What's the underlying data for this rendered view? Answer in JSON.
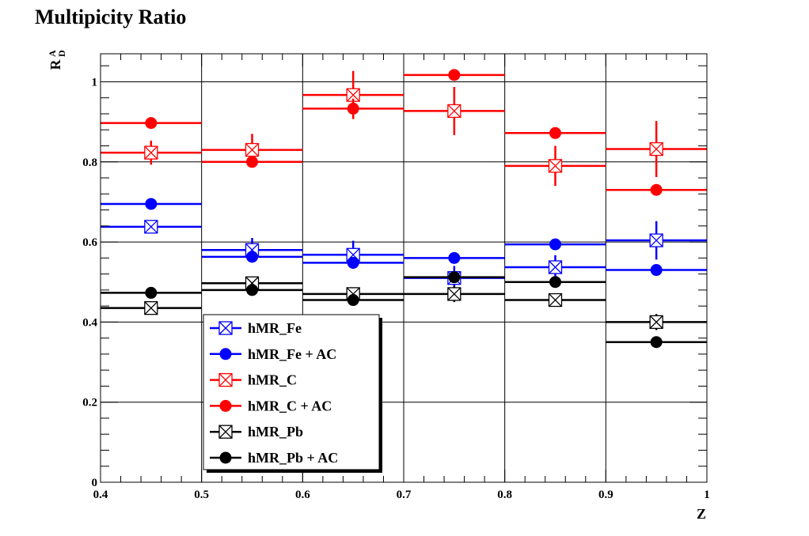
{
  "chart_data": {
    "type": "scatter",
    "title": "Multipicity Ratio",
    "xlabel": "Z",
    "ylabel_main": "R",
    "ylabel_sup": "A",
    "ylabel_sub": "D",
    "xlim": [
      0.4,
      1.0
    ],
    "ylim": [
      0.0,
      1.07
    ],
    "grid": true,
    "legend_position": "bottom-left",
    "x_ticks": [
      {
        "value": 0.4,
        "label": "0.4"
      },
      {
        "value": 0.5,
        "label": "0.5"
      },
      {
        "value": 0.6,
        "label": "0.6"
      },
      {
        "value": 0.7,
        "label": "0.7"
      },
      {
        "value": 0.8,
        "label": "0.8"
      },
      {
        "value": 0.9,
        "label": "0.9"
      },
      {
        "value": 1.0,
        "label": "1"
      }
    ],
    "y_ticks": [
      {
        "value": 0.0,
        "label": "0"
      },
      {
        "value": 0.2,
        "label": "0.2"
      },
      {
        "value": 0.4,
        "label": "0.4"
      },
      {
        "value": 0.6,
        "label": "0.6"
      },
      {
        "value": 0.8,
        "label": "0.8"
      },
      {
        "value": 1.0,
        "label": "1"
      }
    ],
    "bins": [
      [
        0.4,
        0.5
      ],
      [
        0.5,
        0.6
      ],
      [
        0.6,
        0.7
      ],
      [
        0.7,
        0.8
      ],
      [
        0.8,
        0.9
      ],
      [
        0.9,
        1.0
      ]
    ],
    "series": [
      {
        "name": "hMR_Fe",
        "color": "#0000ff",
        "marker": "box-x",
        "values": [
          0.638,
          0.58,
          0.568,
          0.51,
          0.537,
          0.604
        ],
        "errors": [
          0.012,
          0.03,
          0.035,
          0.03,
          0.03,
          0.048
        ]
      },
      {
        "name": "hMR_Fe + AC",
        "color": "#0000ff",
        "marker": "circle",
        "values": [
          0.695,
          0.563,
          0.548,
          0.56,
          0.594,
          0.53
        ],
        "errors": [
          0.008,
          0.01,
          0.01,
          0.01,
          0.01,
          0.01
        ]
      },
      {
        "name": "hMR_C",
        "color": "#ff0000",
        "marker": "box-x",
        "values": [
          0.823,
          0.83,
          0.967,
          0.927,
          0.79,
          0.832
        ],
        "errors": [
          0.03,
          0.04,
          0.06,
          0.06,
          0.05,
          0.07
        ]
      },
      {
        "name": "hMR_C + AC",
        "color": "#ff0000",
        "marker": "circle",
        "values": [
          0.897,
          0.8,
          0.933,
          1.017,
          0.872,
          0.73
        ],
        "errors": [
          0.008,
          0.01,
          0.025,
          0.01,
          0.01,
          0.01
        ]
      },
      {
        "name": "hMR_Pb",
        "color": "#000000",
        "marker": "box-x",
        "values": [
          0.435,
          0.497,
          0.47,
          0.47,
          0.455,
          0.4
        ],
        "errors": [
          0.01,
          0.012,
          0.015,
          0.02,
          0.015,
          0.02
        ]
      },
      {
        "name": "hMR_Pb + AC",
        "color": "#000000",
        "marker": "circle",
        "values": [
          0.473,
          0.48,
          0.455,
          0.512,
          0.5,
          0.35
        ],
        "errors": [
          0.005,
          0.005,
          0.005,
          0.005,
          0.005,
          0.005
        ]
      }
    ]
  }
}
